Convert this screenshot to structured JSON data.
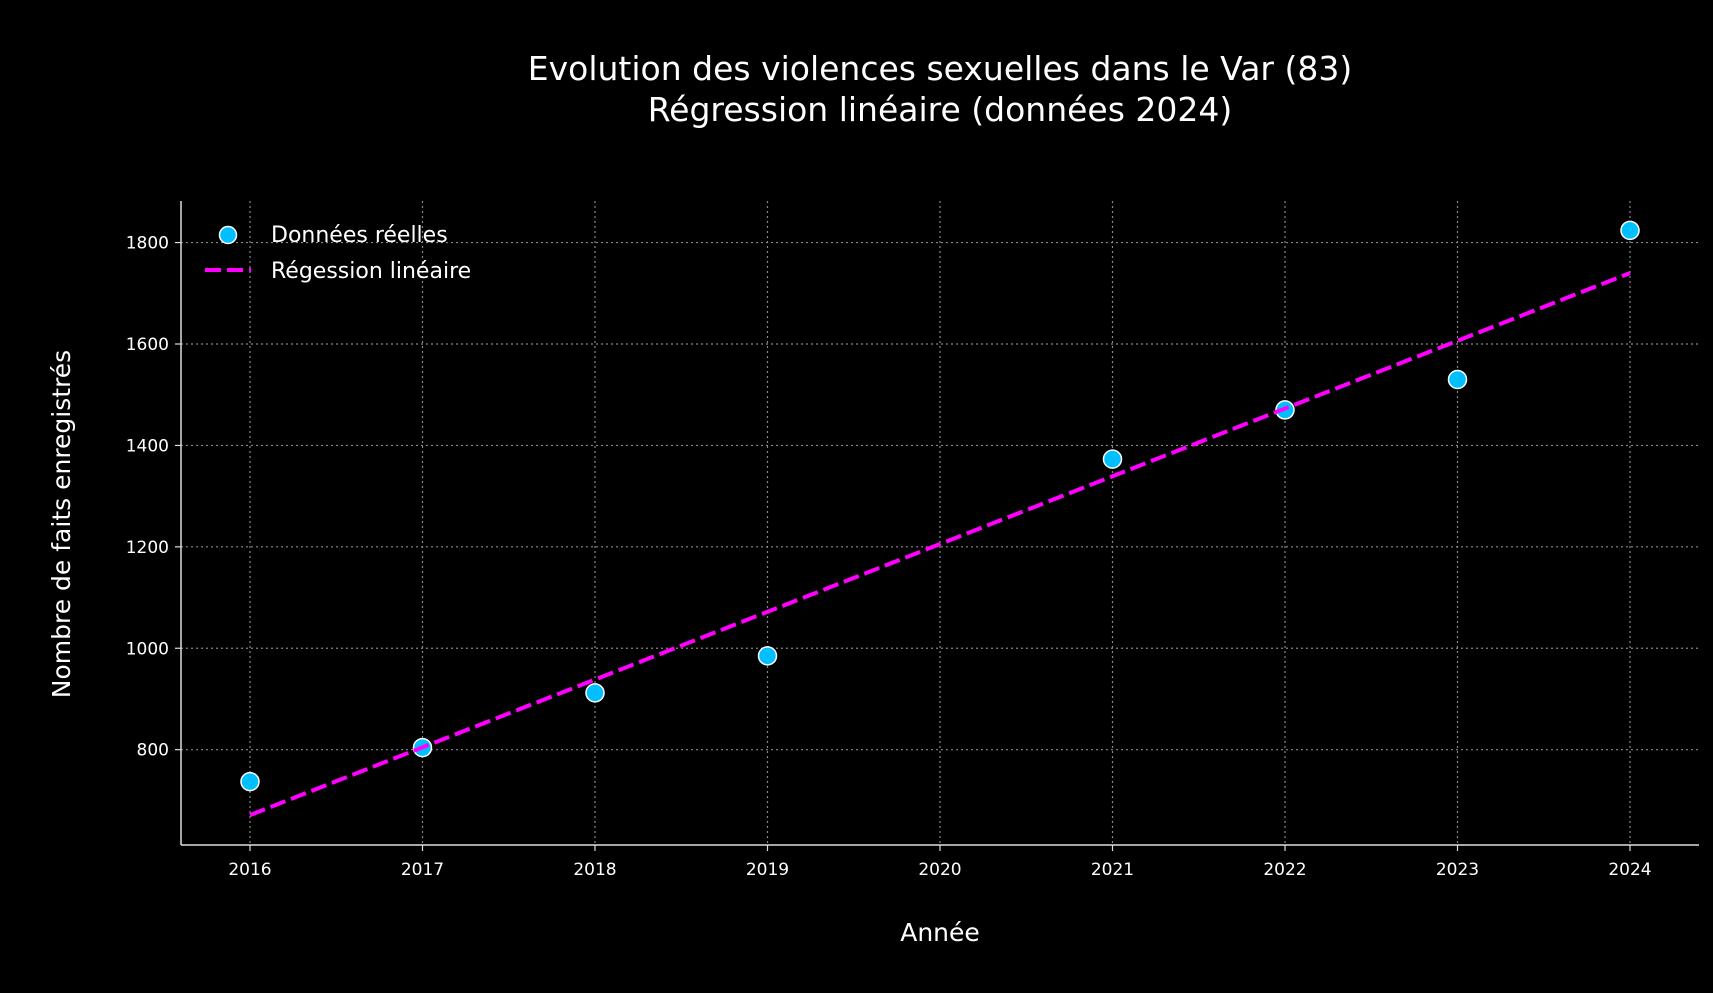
{
  "chart_data": {
    "type": "scatter",
    "title": "Evolution des violences sexuelles dans le Var (83)",
    "subtitle": "Régression linéaire (données 2024)",
    "xlabel": "Année",
    "ylabel": "Nombre de faits enregistrés",
    "xlim": [
      2015.6,
      2024.4
    ],
    "ylim": [
      612,
      1882
    ],
    "x_ticks": [
      2016,
      2017,
      2018,
      2019,
      2020,
      2021,
      2022,
      2023,
      2024
    ],
    "y_ticks": [
      800,
      1000,
      1200,
      1400,
      1600,
      1800
    ],
    "grid": true,
    "legend_position": "top-left",
    "series": [
      {
        "name": "Données réelles",
        "type": "scatter",
        "color": "#00bfff",
        "x": [
          2016,
          2017,
          2018,
          2019,
          2021,
          2022,
          2023,
          2024
        ],
        "y": [
          737,
          804,
          912,
          985,
          1373,
          1470,
          1530,
          1824
        ]
      },
      {
        "name": "Régession linéaire",
        "type": "line",
        "style": "dashed",
        "color": "#ff00ff",
        "x": [
          2016,
          2024
        ],
        "y": [
          671,
          1740
        ]
      }
    ]
  }
}
